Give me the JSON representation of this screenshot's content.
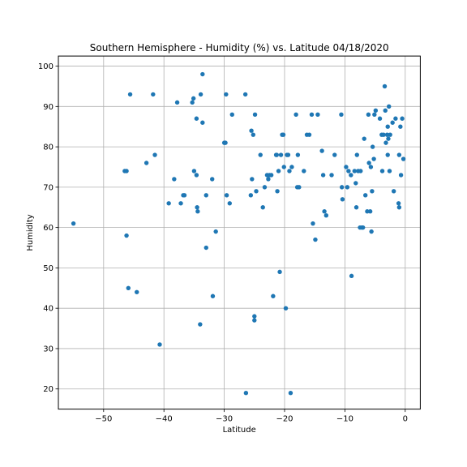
{
  "chart_data": {
    "type": "scatter",
    "title": "Southern Hemisphere - Humidity (%) vs. Latitude 04/18/2020",
    "xlabel": "Latitude",
    "ylabel": "Humidity",
    "xlim": [
      -57.5,
      2.5
    ],
    "ylim": [
      15,
      102.5
    ],
    "xticks": [
      -50,
      -40,
      -30,
      -20,
      -10,
      0
    ],
    "xtick_labels": [
      "−50",
      "−40",
      "−30",
      "−20",
      "−10",
      "0"
    ],
    "yticks": [
      20,
      30,
      40,
      50,
      60,
      70,
      80,
      90,
      100
    ],
    "ytick_labels": [
      "20",
      "30",
      "40",
      "50",
      "60",
      "70",
      "80",
      "90",
      "100"
    ],
    "grid": true,
    "marker_color": "#1f77b4",
    "points": [
      [
        -55,
        61
      ],
      [
        -46.5,
        74
      ],
      [
        -46.2,
        74
      ],
      [
        -46.2,
        58
      ],
      [
        -45.9,
        45
      ],
      [
        -45.6,
        93
      ],
      [
        -44.5,
        44
      ],
      [
        -42.9,
        76
      ],
      [
        -41.8,
        93
      ],
      [
        -41.5,
        78
      ],
      [
        -40.7,
        31
      ],
      [
        -39.2,
        66
      ],
      [
        -38.3,
        72
      ],
      [
        -37.8,
        91
      ],
      [
        -37.2,
        66
      ],
      [
        -36.8,
        68
      ],
      [
        -36.6,
        68
      ],
      [
        -35.3,
        91
      ],
      [
        -35.1,
        92
      ],
      [
        -35.0,
        74
      ],
      [
        -34.6,
        73
      ],
      [
        -34.6,
        87
      ],
      [
        -34.5,
        65
      ],
      [
        -34.4,
        64
      ],
      [
        -34.0,
        36
      ],
      [
        -33.9,
        93
      ],
      [
        -33.6,
        98
      ],
      [
        -33.6,
        86
      ],
      [
        -33.0,
        68
      ],
      [
        -33.0,
        55
      ],
      [
        -32.0,
        72
      ],
      [
        -31.9,
        43
      ],
      [
        -31.4,
        59
      ],
      [
        -30.0,
        81
      ],
      [
        -29.8,
        81
      ],
      [
        -29.7,
        93
      ],
      [
        -29.6,
        68
      ],
      [
        -29.1,
        66
      ],
      [
        -28.7,
        88
      ],
      [
        -26.5,
        93
      ],
      [
        -26.4,
        19
      ],
      [
        -25.6,
        68
      ],
      [
        -25.5,
        84
      ],
      [
        -25.4,
        72
      ],
      [
        -25.2,
        83
      ],
      [
        -25.0,
        38
      ],
      [
        -25.0,
        37
      ],
      [
        -24.9,
        88
      ],
      [
        -24.7,
        69
      ],
      [
        -24.0,
        78
      ],
      [
        -23.6,
        65
      ],
      [
        -23.3,
        70
      ],
      [
        -22.9,
        73
      ],
      [
        -22.7,
        72
      ],
      [
        -22.5,
        73
      ],
      [
        -22.2,
        73
      ],
      [
        -21.9,
        43
      ],
      [
        -21.4,
        78
      ],
      [
        -21.3,
        78
      ],
      [
        -21.2,
        69
      ],
      [
        -21.0,
        74
      ],
      [
        -20.8,
        49
      ],
      [
        -20.6,
        78
      ],
      [
        -20.4,
        83
      ],
      [
        -20.2,
        83
      ],
      [
        -20.1,
        75
      ],
      [
        -19.8,
        40
      ],
      [
        -19.6,
        78
      ],
      [
        -19.4,
        78
      ],
      [
        -19.2,
        74
      ],
      [
        -19.0,
        19
      ],
      [
        -18.8,
        75
      ],
      [
        -18.1,
        88
      ],
      [
        -17.9,
        70
      ],
      [
        -17.8,
        78
      ],
      [
        -17.6,
        70
      ],
      [
        -16.8,
        74
      ],
      [
        -16.3,
        83
      ],
      [
        -15.9,
        83
      ],
      [
        -15.5,
        88
      ],
      [
        -15.3,
        61
      ],
      [
        -14.9,
        57
      ],
      [
        -14.5,
        88
      ],
      [
        -13.8,
        79
      ],
      [
        -13.6,
        73
      ],
      [
        -13.4,
        64
      ],
      [
        -13.1,
        63
      ],
      [
        -12.2,
        73
      ],
      [
        -11.7,
        78
      ],
      [
        -10.6,
        88
      ],
      [
        -10.5,
        70
      ],
      [
        -10.4,
        67
      ],
      [
        -9.8,
        75
      ],
      [
        -9.6,
        70
      ],
      [
        -9.4,
        74
      ],
      [
        -9.0,
        73
      ],
      [
        -8.9,
        48
      ],
      [
        -8.4,
        74
      ],
      [
        -8.2,
        71
      ],
      [
        -8.1,
        65
      ],
      [
        -8.0,
        78
      ],
      [
        -7.8,
        74
      ],
      [
        -7.5,
        60
      ],
      [
        -7.4,
        74
      ],
      [
        -7.2,
        60
      ],
      [
        -7.0,
        60
      ],
      [
        -6.8,
        82
      ],
      [
        -6.6,
        68
      ],
      [
        -6.3,
        64
      ],
      [
        -6.1,
        88
      ],
      [
        -6.0,
        76
      ],
      [
        -5.8,
        64
      ],
      [
        -5.7,
        75
      ],
      [
        -5.6,
        59
      ],
      [
        -5.5,
        69
      ],
      [
        -5.4,
        80
      ],
      [
        -5.2,
        77
      ],
      [
        -5.1,
        88
      ],
      [
        -4.9,
        89
      ],
      [
        -4.2,
        87
      ],
      [
        -3.9,
        83
      ],
      [
        -3.8,
        74
      ],
      [
        -3.6,
        83
      ],
      [
        -3.4,
        95
      ],
      [
        -3.3,
        89
      ],
      [
        -3.2,
        81
      ],
      [
        -3.0,
        83
      ],
      [
        -2.9,
        85
      ],
      [
        -2.9,
        78
      ],
      [
        -2.8,
        82
      ],
      [
        -2.7,
        90
      ],
      [
        -2.6,
        74
      ],
      [
        -2.5,
        83
      ],
      [
        -2.1,
        86
      ],
      [
        -1.9,
        69
      ],
      [
        -1.6,
        87
      ],
      [
        -1.1,
        66
      ],
      [
        -1.0,
        65
      ],
      [
        -1.0,
        78
      ],
      [
        -0.8,
        85
      ],
      [
        -0.7,
        73
      ],
      [
        -0.5,
        87
      ],
      [
        -0.3,
        77
      ]
    ]
  }
}
